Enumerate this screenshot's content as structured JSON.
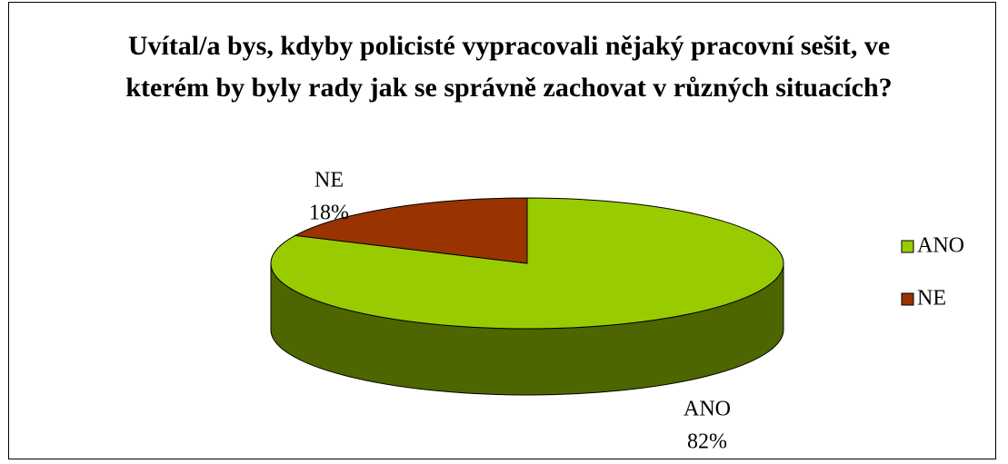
{
  "chart_data": {
    "type": "pie3d",
    "title": "Uvítal/a bys, kdyby policisté vypracovali nějaký pracovní sešit, ve kterém by byly rady jak se správně zachovat v různých situacích?",
    "categories": [
      "ANO",
      "NE"
    ],
    "values": [
      82,
      18
    ],
    "value_labels": [
      "82%",
      "18%"
    ],
    "colors": [
      "#99cc00",
      "#993300"
    ],
    "legend": "right"
  }
}
